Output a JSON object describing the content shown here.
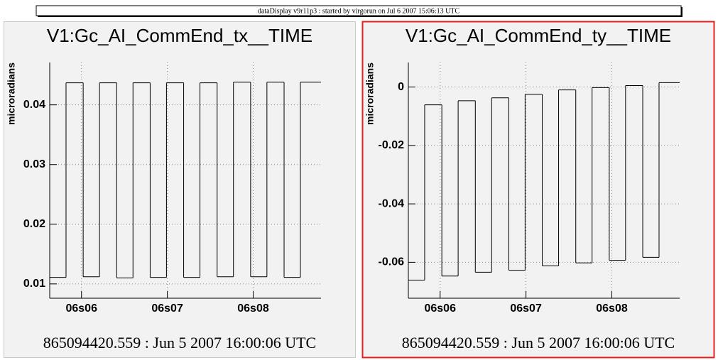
{
  "header": {
    "title": "dataDisplay v9r11p3 : started by virgorun on Jul  6 2007 15:06:13 UTC"
  },
  "chart_data": [
    {
      "type": "step",
      "title": "V1:Gc_AI_CommEnd_tx__TIME",
      "ylabel": "microradians",
      "footer": "865094420.559 : Jun  5 2007 16:00:06 UTC",
      "color": "#000000",
      "grid": true,
      "x": [
        5.63,
        5.82,
        6.02,
        6.21,
        6.41,
        6.6,
        6.8,
        6.99,
        7.19,
        7.38,
        7.58,
        7.77,
        7.97,
        8.16,
        8.36,
        8.55
      ],
      "values": [
        0.0111,
        0.0437,
        0.0112,
        0.0437,
        0.011,
        0.0437,
        0.0111,
        0.0437,
        0.0111,
        0.0437,
        0.0112,
        0.0438,
        0.0112,
        0.0438,
        0.0111,
        0.0438
      ],
      "xlim": [
        5.63,
        8.79
      ],
      "xticks": [
        {
          "value": 6,
          "label": "06s06"
        },
        {
          "value": 7,
          "label": "06s07"
        },
        {
          "value": 8,
          "label": "06s08"
        }
      ],
      "ylim": [
        0.0076,
        0.0471
      ],
      "yticks": [
        0.01,
        0.02,
        0.03,
        0.04
      ]
    },
    {
      "type": "step",
      "title": "V1:Gc_AI_CommEnd_ty__TIME",
      "ylabel": "microradians",
      "footer": "865094420.559 : Jun  5 2007 16:00:06 UTC",
      "color": "#000000",
      "grid": true,
      "x": [
        5.63,
        5.82,
        6.02,
        6.21,
        6.41,
        6.6,
        6.8,
        6.99,
        7.19,
        7.38,
        7.58,
        7.77,
        7.97,
        8.16,
        8.36,
        8.55
      ],
      "values": [
        -0.0661,
        -0.0061,
        -0.0647,
        -0.0047,
        -0.0634,
        -0.0037,
        -0.0627,
        -0.0025,
        -0.0612,
        -0.001,
        -0.0602,
        -0.0002,
        -0.0593,
        0.0005,
        -0.0583,
        0.0015
      ],
      "xlim": [
        5.63,
        8.79
      ],
      "xticks": [
        {
          "value": 6,
          "label": "06s06"
        },
        {
          "value": 7,
          "label": "06s07"
        },
        {
          "value": 8,
          "label": "06s08"
        }
      ],
      "ylim": [
        -0.0723,
        0.0084
      ],
      "yticks": [
        -0.06,
        -0.04,
        -0.02,
        0
      ]
    }
  ]
}
